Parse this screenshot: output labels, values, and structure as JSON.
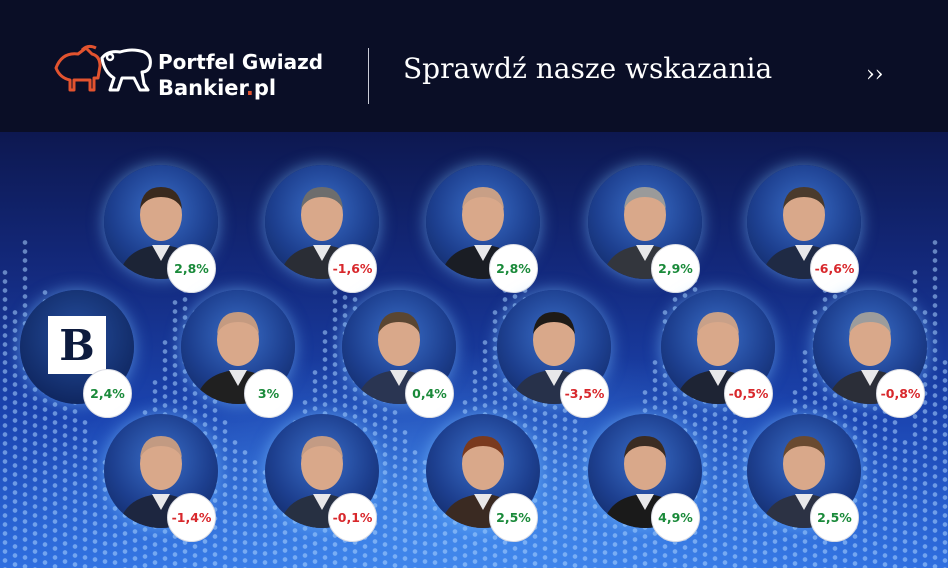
{
  "header": {
    "brand_line1": "Portfel Gwiazd",
    "brand_line2_main": "Bankier",
    "brand_line2_dot": ".",
    "brand_line2_suffix": "pl",
    "cta_text": "Sprawdź nasze wskazania",
    "cta_arrow": "››"
  },
  "colors": {
    "accent": "#e2532f",
    "positive": "#1a8a3a",
    "negative": "#d8282c"
  },
  "bankier_tile": {
    "letter": "B",
    "value": "2,4%"
  },
  "experts": [
    {
      "value": "2,8%",
      "trend": "pos"
    },
    {
      "value": "-1,6%",
      "trend": "neg"
    },
    {
      "value": "2,8%",
      "trend": "pos"
    },
    {
      "value": "2,9%",
      "trend": "pos"
    },
    {
      "value": "-6,6%",
      "trend": "neg"
    },
    {
      "value": "3%",
      "trend": "pos"
    },
    {
      "value": "0,4%",
      "trend": "pos"
    },
    {
      "value": "-3,5%",
      "trend": "neg"
    },
    {
      "value": "-0,5%",
      "trend": "neg"
    },
    {
      "value": "-0,8%",
      "trend": "neg"
    },
    {
      "value": "-1,4%",
      "trend": "neg"
    },
    {
      "value": "-0,1%",
      "trend": "neg"
    },
    {
      "value": "2,5%",
      "trend": "pos"
    },
    {
      "value": "4,9%",
      "trend": "pos"
    },
    {
      "value": "2,5%",
      "trend": "pos"
    }
  ]
}
